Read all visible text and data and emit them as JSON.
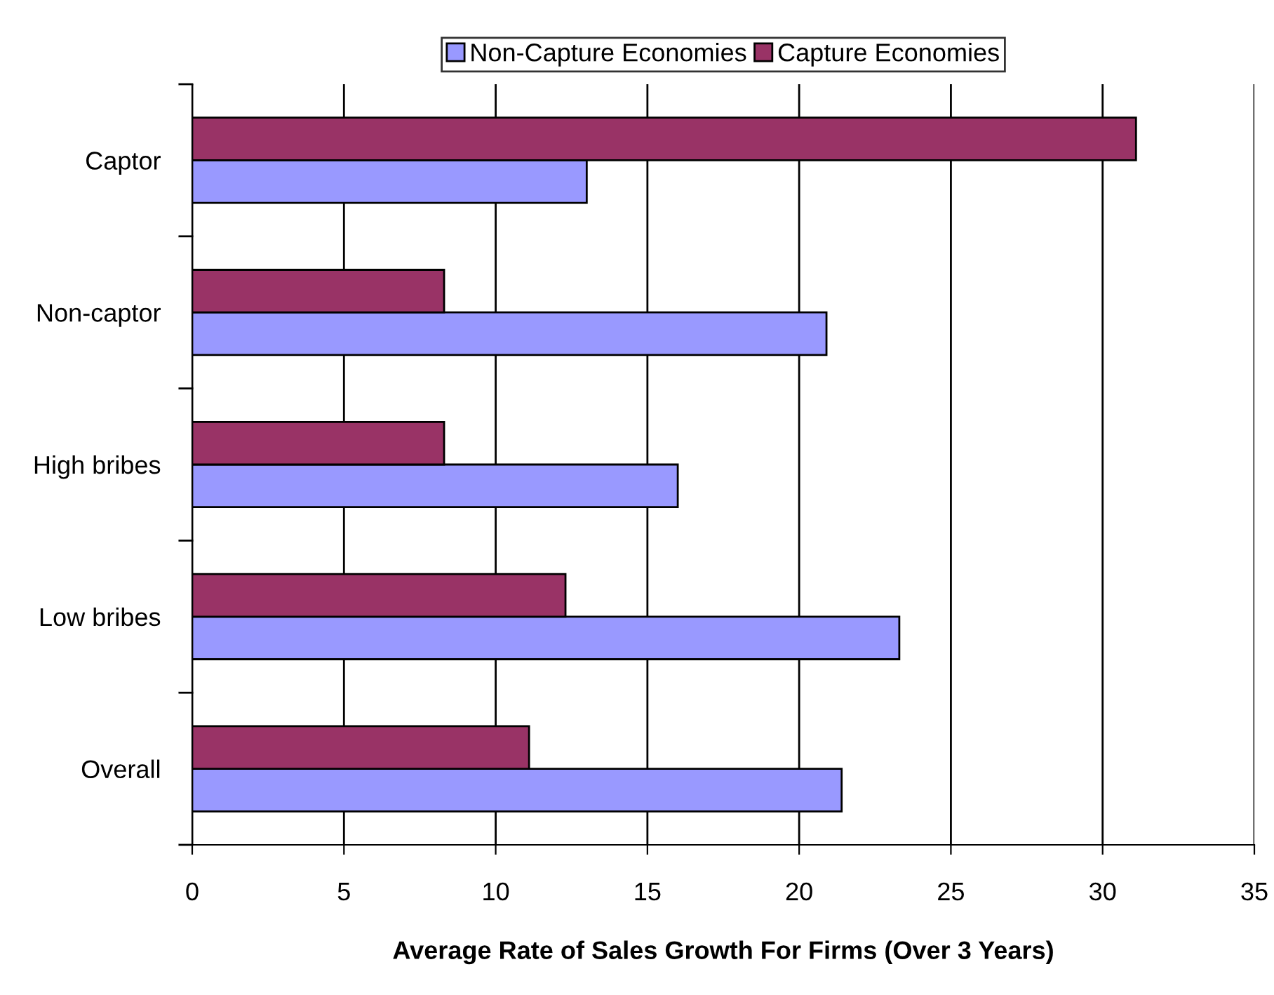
{
  "chart_data": {
    "type": "bar",
    "orientation": "horizontal",
    "xlabel": "Average Rate of Sales Growth For Firms (Over 3 Years)",
    "categories": [
      "Captor",
      "Non-captor",
      "High bribes",
      "Low bribes",
      "Overall"
    ],
    "series": [
      {
        "name": "Non-Capture Economies",
        "color": "#9999ff",
        "values": [
          13.0,
          20.9,
          16.0,
          23.3,
          21.4
        ]
      },
      {
        "name": "Capture Economies",
        "color": "#993366",
        "values": [
          31.1,
          8.3,
          8.3,
          12.3,
          11.1
        ]
      }
    ],
    "xlim": [
      0,
      35
    ],
    "xticks": [
      0,
      5,
      10,
      15,
      20,
      25,
      30,
      35
    ],
    "grid": "x",
    "legend": "top"
  }
}
